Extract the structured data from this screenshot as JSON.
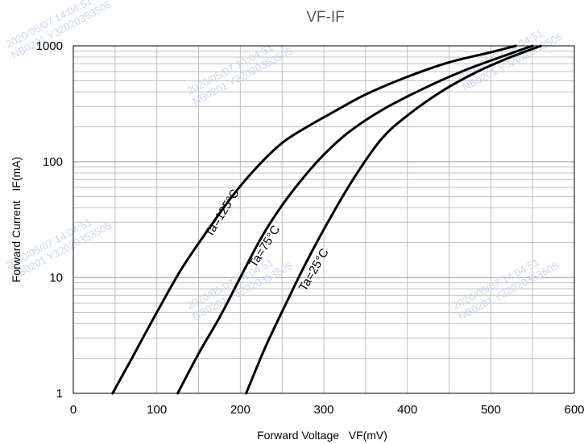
{
  "chart_data": {
    "type": "line",
    "title": "VF-IF",
    "xlabel": "Forward Voltage   VF(mV)",
    "ylabel": "Forward Current   IF(mA)",
    "xlim": [
      0,
      600
    ],
    "ylim": [
      1,
      1000
    ],
    "yscale": "log",
    "x_ticks": [
      "0",
      "100",
      "200",
      "300",
      "400",
      "500",
      "600"
    ],
    "y_ticks": [
      "1",
      "10",
      "100",
      "1000"
    ],
    "grid": true,
    "series": [
      {
        "name": "Ta=125°C",
        "color": "#000000",
        "x": [
          47,
          70,
          100,
          130,
          160,
          190,
          220,
          250,
          280,
          310,
          350,
          400,
          450,
          500,
          530
        ],
        "y": [
          1,
          2,
          5,
          12,
          25,
          50,
          90,
          145,
          200,
          265,
          380,
          540,
          720,
          880,
          1000
        ]
      },
      {
        "name": "Ta=75°C",
        "color": "#000000",
        "x": [
          125,
          150,
          175,
          200,
          225,
          250,
          275,
          300,
          330,
          370,
          420,
          470,
          520,
          550
        ],
        "y": [
          1,
          2.2,
          4.5,
          10,
          22,
          42,
          72,
          115,
          180,
          280,
          430,
          620,
          840,
          1000
        ]
      },
      {
        "name": "Ta=25°C",
        "color": "#000000",
        "x": [
          207,
          230,
          255,
          280,
          310,
          340,
          370,
          400,
          440,
          480,
          520,
          560
        ],
        "y": [
          1,
          2.5,
          6,
          14,
          35,
          80,
          160,
          250,
          400,
          580,
          780,
          1000
        ]
      }
    ]
  },
  "watermarks": [
    "2020/05/07 14:04:51",
    "NB0201 Y32020353505"
  ]
}
